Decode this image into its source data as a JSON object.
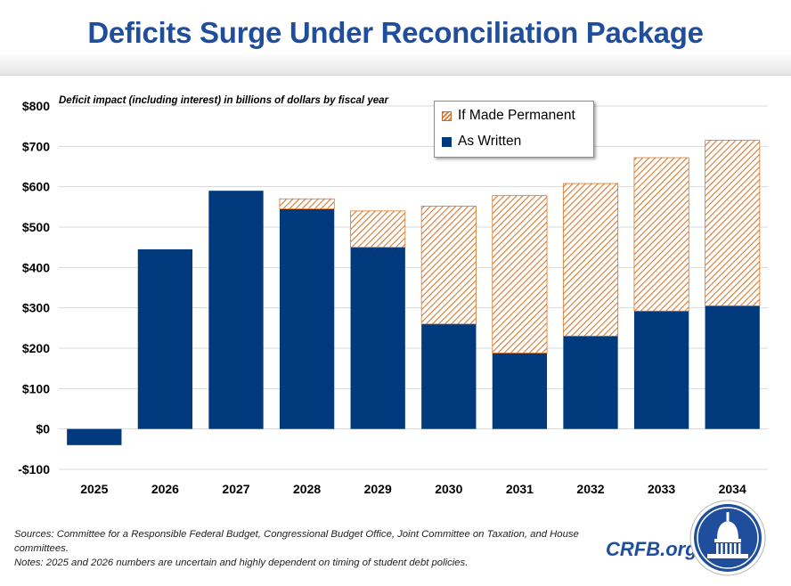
{
  "title": "Deficits Surge Under Reconciliation Package",
  "subtitle": "Deficit impact (including interest) in billions of dollars by fiscal year",
  "legend": {
    "permanent": "If Made Permanent",
    "written": "As Written"
  },
  "colors": {
    "as_written": "#003a7d",
    "permanent_hatch": "#d9772e",
    "title": "#1f4e9c"
  },
  "chart_data": {
    "type": "bar",
    "stacked": true,
    "title": "Deficits Surge Under Reconciliation Package",
    "ylabel": "",
    "xlabel": "",
    "categories": [
      "2025",
      "2026",
      "2027",
      "2028",
      "2029",
      "2030",
      "2031",
      "2032",
      "2033",
      "2034"
    ],
    "series": [
      {
        "name": "As Written",
        "values": [
          -40,
          445,
          590,
          545,
          450,
          260,
          188,
          230,
          292,
          305
        ]
      },
      {
        "name": "If Made Permanent",
        "values": [
          0,
          0,
          0,
          25,
          90,
          292,
          390,
          378,
          380,
          410
        ]
      }
    ],
    "ylim": [
      -100,
      800
    ],
    "yticks": [
      -100,
      0,
      100,
      200,
      300,
      400,
      500,
      600,
      700,
      800
    ],
    "ytick_labels": [
      "-$100",
      "$0",
      "$100",
      "$200",
      "$300",
      "$400",
      "$500",
      "$600",
      "$700",
      "$800"
    ],
    "grid": true,
    "legend_position": "top-right"
  },
  "sources_text": "Sources: Committee for a Responsible Federal Budget, Congressional Budget Office, Joint Committee on Taxation, and House committees.",
  "notes_text": "Notes: 2025 and 2026 numbers are uncertain and highly dependent on timing of student debt policies.",
  "brand": "CRFB.org",
  "logo_icon": "capitol-dome-icon"
}
